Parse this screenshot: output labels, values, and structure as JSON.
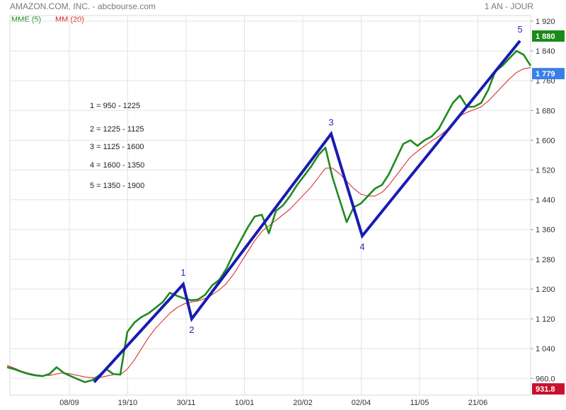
{
  "header": {
    "title": "AMAZON.COM, INC. - abcbourse.com",
    "period": "1 AN - JOUR"
  },
  "indicators": [
    {
      "label": "MME (5)",
      "color": "#1f8a1f"
    },
    {
      "label": "MM (20)",
      "color": "#d42020"
    }
  ],
  "chart_data": {
    "type": "line",
    "title": "AMAZON.COM, INC.",
    "ylim": [
      915,
      1935
    ],
    "y_ticks": [
      960,
      1040,
      1120,
      1200,
      1280,
      1360,
      1440,
      1520,
      1600,
      1680,
      1760,
      1840,
      1920
    ],
    "y_tick_labels": [
      "960.0",
      "1 040",
      "1 120",
      "1 200",
      "1 280",
      "1 360",
      "1 440",
      "1 520",
      "1 600",
      "1 680",
      "1 760",
      "1 840",
      "1 920"
    ],
    "x_ticks": [
      "08/09",
      "19/10",
      "30/11",
      "10/01",
      "20/02",
      "02/04",
      "11/05",
      "21/06"
    ],
    "grid": true,
    "price_labels": [
      {
        "value": "1 880",
        "color": "#1a8a1a"
      },
      {
        "value": "1 779",
        "color": "#3a7fe8"
      },
      {
        "value": "931.8",
        "color": "#c8102e"
      }
    ],
    "wave_points": [
      {
        "label": "",
        "x": "16/09",
        "y": 950
      },
      {
        "label": "1",
        "x": "29/11",
        "y": 1213
      },
      {
        "label": "2",
        "x": "01/12",
        "y": 1120
      },
      {
        "label": "3",
        "x": "01/03",
        "y": 1617
      },
      {
        "label": "4",
        "x": "02/04",
        "y": 1343
      },
      {
        "label": "5",
        "x": "12/07",
        "y": 1867
      }
    ],
    "wave_color": "#1a1ab4",
    "annotations": [
      "1 = 950 - 1225",
      "2 = 1225 - 1125",
      "3 = 1125 - 1600",
      "4 = 1600 - 1350",
      "5 = 1350 - 1900"
    ],
    "series": [
      {
        "name": "MME (5)",
        "color": "#1f8a1f",
        "x": [
          10,
          20,
          30,
          40,
          50,
          60,
          70,
          80,
          90,
          100,
          110,
          120,
          130,
          140,
          150,
          160,
          170,
          180,
          190,
          200,
          210,
          220,
          230,
          240,
          250,
          260,
          270,
          280,
          290,
          300,
          310,
          320,
          330,
          340,
          350,
          360,
          370,
          380,
          390,
          400,
          410,
          420,
          430,
          440,
          450,
          460,
          470,
          480,
          490,
          500,
          510,
          520,
          530,
          540,
          550,
          560,
          570,
          580,
          590,
          600,
          610,
          620,
          630,
          640,
          650,
          660,
          670,
          680,
          690,
          700,
          710,
          720,
          730,
          740,
          750
        ],
        "values": [
          990,
          985,
          978,
          972,
          968,
          966,
          972,
          990,
          975,
          966,
          958,
          950,
          955,
          968,
          985,
          972,
          970,
          1085,
          1110,
          1125,
          1135,
          1150,
          1165,
          1190,
          1182,
          1175,
          1170,
          1172,
          1185,
          1210,
          1225,
          1255,
          1295,
          1330,
          1365,
          1395,
          1400,
          1350,
          1410,
          1425,
          1450,
          1480,
          1505,
          1530,
          1560,
          1580,
          1500,
          1440,
          1380,
          1420,
          1430,
          1450,
          1470,
          1480,
          1510,
          1550,
          1590,
          1600,
          1585,
          1600,
          1610,
          1630,
          1665,
          1700,
          1720,
          1690,
          1690,
          1700,
          1735,
          1785,
          1800,
          1820,
          1840,
          1830,
          1800
        ]
      },
      {
        "name": "MM (20)",
        "color": "#d42020",
        "x": [
          10,
          20,
          30,
          40,
          50,
          60,
          70,
          80,
          90,
          100,
          110,
          120,
          130,
          140,
          150,
          160,
          170,
          180,
          190,
          200,
          210,
          220,
          230,
          240,
          250,
          260,
          270,
          280,
          290,
          300,
          310,
          320,
          330,
          340,
          350,
          360,
          370,
          380,
          390,
          400,
          410,
          420,
          430,
          440,
          450,
          460,
          470,
          480,
          490,
          500,
          510,
          520,
          530,
          540,
          550,
          560,
          570,
          580,
          590,
          600,
          610,
          620,
          630,
          640,
          650,
          660,
          670,
          680,
          690,
          700,
          710,
          720,
          730,
          740,
          750
        ],
        "values": [
          995,
          988,
          980,
          974,
          970,
          968,
          968,
          972,
          975,
          972,
          968,
          964,
          962,
          962,
          966,
          970,
          970,
          985,
          1010,
          1040,
          1070,
          1095,
          1115,
          1135,
          1150,
          1160,
          1165,
          1168,
          1175,
          1185,
          1198,
          1215,
          1240,
          1270,
          1300,
          1330,
          1355,
          1370,
          1385,
          1400,
          1415,
          1435,
          1455,
          1475,
          1500,
          1525,
          1525,
          1510,
          1490,
          1470,
          1455,
          1450,
          1450,
          1460,
          1480,
          1505,
          1530,
          1555,
          1570,
          1585,
          1598,
          1610,
          1625,
          1645,
          1665,
          1675,
          1682,
          1690,
          1705,
          1725,
          1745,
          1765,
          1782,
          1792,
          1795
        ]
      }
    ]
  }
}
